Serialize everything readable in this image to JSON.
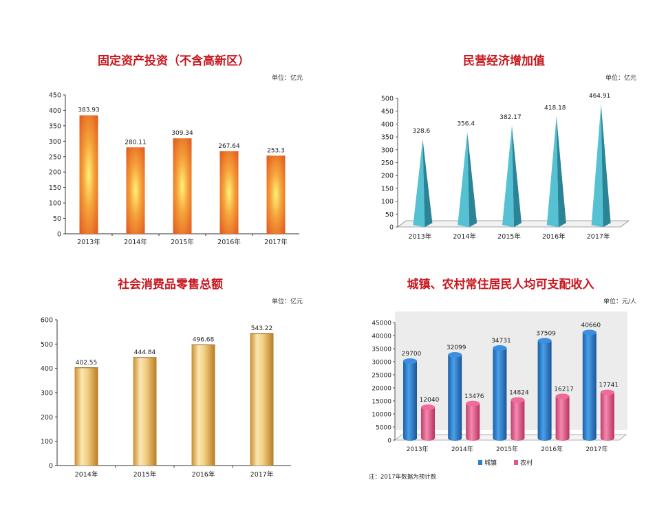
{
  "chart_data": [
    {
      "type": "bar",
      "title": "固定资产投资（不含高新区）",
      "unit": "单位：亿元",
      "categories": [
        "2013年",
        "2014年",
        "2015年",
        "2016年",
        "2017年"
      ],
      "values": [
        383.93,
        280.11,
        309.34,
        267.64,
        253.3
      ],
      "value_labels": [
        "383.93",
        "280.11",
        "309.34",
        "267.64",
        "253.3"
      ],
      "yticks": [
        "0",
        "50",
        "100",
        "150",
        "200",
        "250",
        "300",
        "350",
        "400",
        "450"
      ],
      "ylim": [
        0,
        450
      ],
      "color": "#e8732c"
    },
    {
      "type": "bar",
      "title": "民营经济增加值",
      "unit": "单位：亿元",
      "categories": [
        "2013年",
        "2014年",
        "2015年",
        "2016年",
        "2017年"
      ],
      "values": [
        328.6,
        356.4,
        382.17,
        418.18,
        464.91
      ],
      "value_labels": [
        "328.6",
        "356.4",
        "382.17",
        "418.18",
        "464.91"
      ],
      "yticks": [
        "0",
        "50",
        "100",
        "150",
        "200",
        "250",
        "300",
        "350",
        "400",
        "450",
        "500"
      ],
      "ylim": [
        0,
        500
      ],
      "color": "#3aa8bd"
    },
    {
      "type": "bar",
      "title": "社会消费品零售总额",
      "unit": "单位：亿元",
      "categories": [
        "2014年",
        "2015年",
        "2016年",
        "2017年"
      ],
      "values": [
        402.55,
        444.84,
        496.68,
        543.22
      ],
      "value_labels": [
        "402.55",
        "444.84",
        "496.68",
        "543.22"
      ],
      "yticks": [
        "0",
        "100",
        "200",
        "300",
        "400",
        "500",
        "600"
      ],
      "ylim": [
        0,
        600
      ],
      "color": "#d9a64a"
    },
    {
      "type": "bar",
      "title": "城镇、农村常住居民人均可支配收入",
      "unit": "单位：元/人",
      "categories": [
        "2013年",
        "2014年",
        "2015年",
        "2016年",
        "2017年"
      ],
      "series": [
        {
          "name": "城镇",
          "values": [
            29700,
            32099,
            34731,
            37509,
            40660
          ],
          "value_labels": [
            "29700",
            "32099",
            "34731",
            "37509",
            "40660"
          ],
          "color": "#2a7fd0"
        },
        {
          "name": "农村",
          "values": [
            12040,
            13476,
            14824,
            16217,
            17741
          ],
          "value_labels": [
            "12040",
            "13476",
            "14824",
            "16217",
            "17741"
          ],
          "color": "#e8528a"
        }
      ],
      "yticks": [
        "0",
        "5000",
        "10000",
        "15000",
        "20000",
        "25000",
        "30000",
        "35000",
        "40000",
        "45000"
      ],
      "ylim": [
        0,
        45000
      ],
      "legend": "bottom",
      "note": "注：2017年数据为预计数"
    }
  ]
}
